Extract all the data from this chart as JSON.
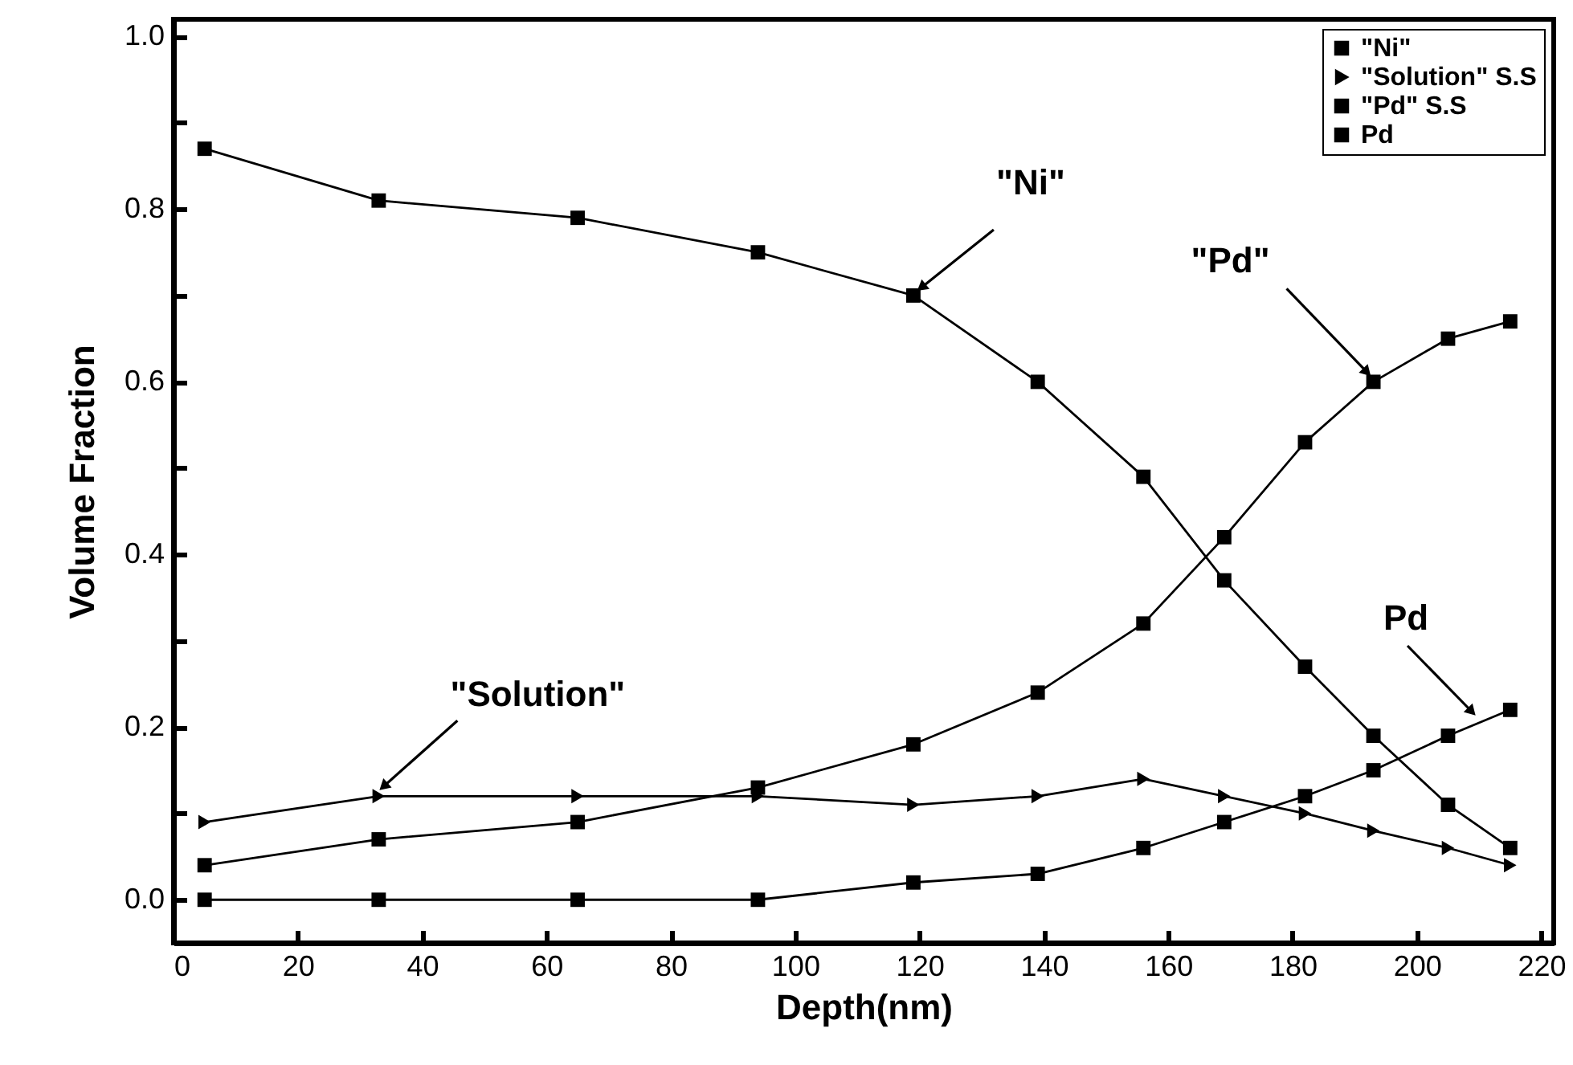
{
  "chart_data": {
    "type": "line",
    "xlabel": "Depth(nm)",
    "ylabel": "Volume Fraction",
    "x": [
      5,
      33,
      65,
      94,
      119,
      139,
      156,
      169,
      182,
      193,
      205,
      215
    ],
    "series": [
      {
        "name": "\"Ni\"",
        "color": "#000000",
        "marker": "square",
        "values": [
          0.87,
          0.81,
          0.79,
          0.75,
          0.7,
          0.6,
          0.49,
          0.37,
          0.27,
          0.19,
          0.11,
          0.06
        ]
      },
      {
        "name": "\"Solution\" S.S",
        "color": "#000000",
        "marker": "triangle",
        "values": [
          0.09,
          0.12,
          0.12,
          0.12,
          0.11,
          0.12,
          0.14,
          0.12,
          0.1,
          0.08,
          0.06,
          0.04
        ]
      },
      {
        "name": "\"Pd\" S.S",
        "color": "#000000",
        "marker": "square",
        "values": [
          0.04,
          0.07,
          0.09,
          0.13,
          0.18,
          0.24,
          0.32,
          0.42,
          0.53,
          0.6,
          0.65,
          0.67
        ]
      },
      {
        "name": "Pd",
        "color": "#000000",
        "marker": "square",
        "values": [
          0,
          0,
          0,
          0,
          0.02,
          0.03,
          0.06,
          0.09,
          0.12,
          0.15,
          0.19,
          0.22
        ]
      }
    ],
    "xlim": [
      0,
      222
    ],
    "xticks": [
      0,
      20,
      40,
      60,
      80,
      100,
      120,
      140,
      160,
      180,
      200,
      220
    ],
    "ylim": [
      -0.05,
      1.02
    ],
    "yticks": [
      {
        "value": 0,
        "label": "0.0"
      },
      {
        "value": 0.1,
        "label": null
      },
      {
        "value": 0.2,
        "label": "0.2"
      },
      {
        "value": 0.3,
        "label": null
      },
      {
        "value": 0.4,
        "label": "0.4"
      },
      {
        "value": 0.5,
        "label": null
      },
      {
        "value": 0.6,
        "label": "0.6"
      },
      {
        "value": 0.7,
        "label": null
      },
      {
        "value": 0.8,
        "label": "0.8"
      },
      {
        "value": 0.9,
        "label": null
      },
      {
        "value": 1,
        "label": "1.0"
      }
    ],
    "annotations": [
      {
        "text": "\"Ni\"",
        "x": 119,
        "y": 0.7
      },
      {
        "text": "\"Pd\"",
        "x": 193,
        "y": 0.6
      },
      {
        "text": "\"Solution\"",
        "x": 33,
        "y": 0.12
      },
      "Pd"
    ],
    "grid": false,
    "legend": "top right",
    "marker": "square",
    "line_style": "solid"
  }
}
